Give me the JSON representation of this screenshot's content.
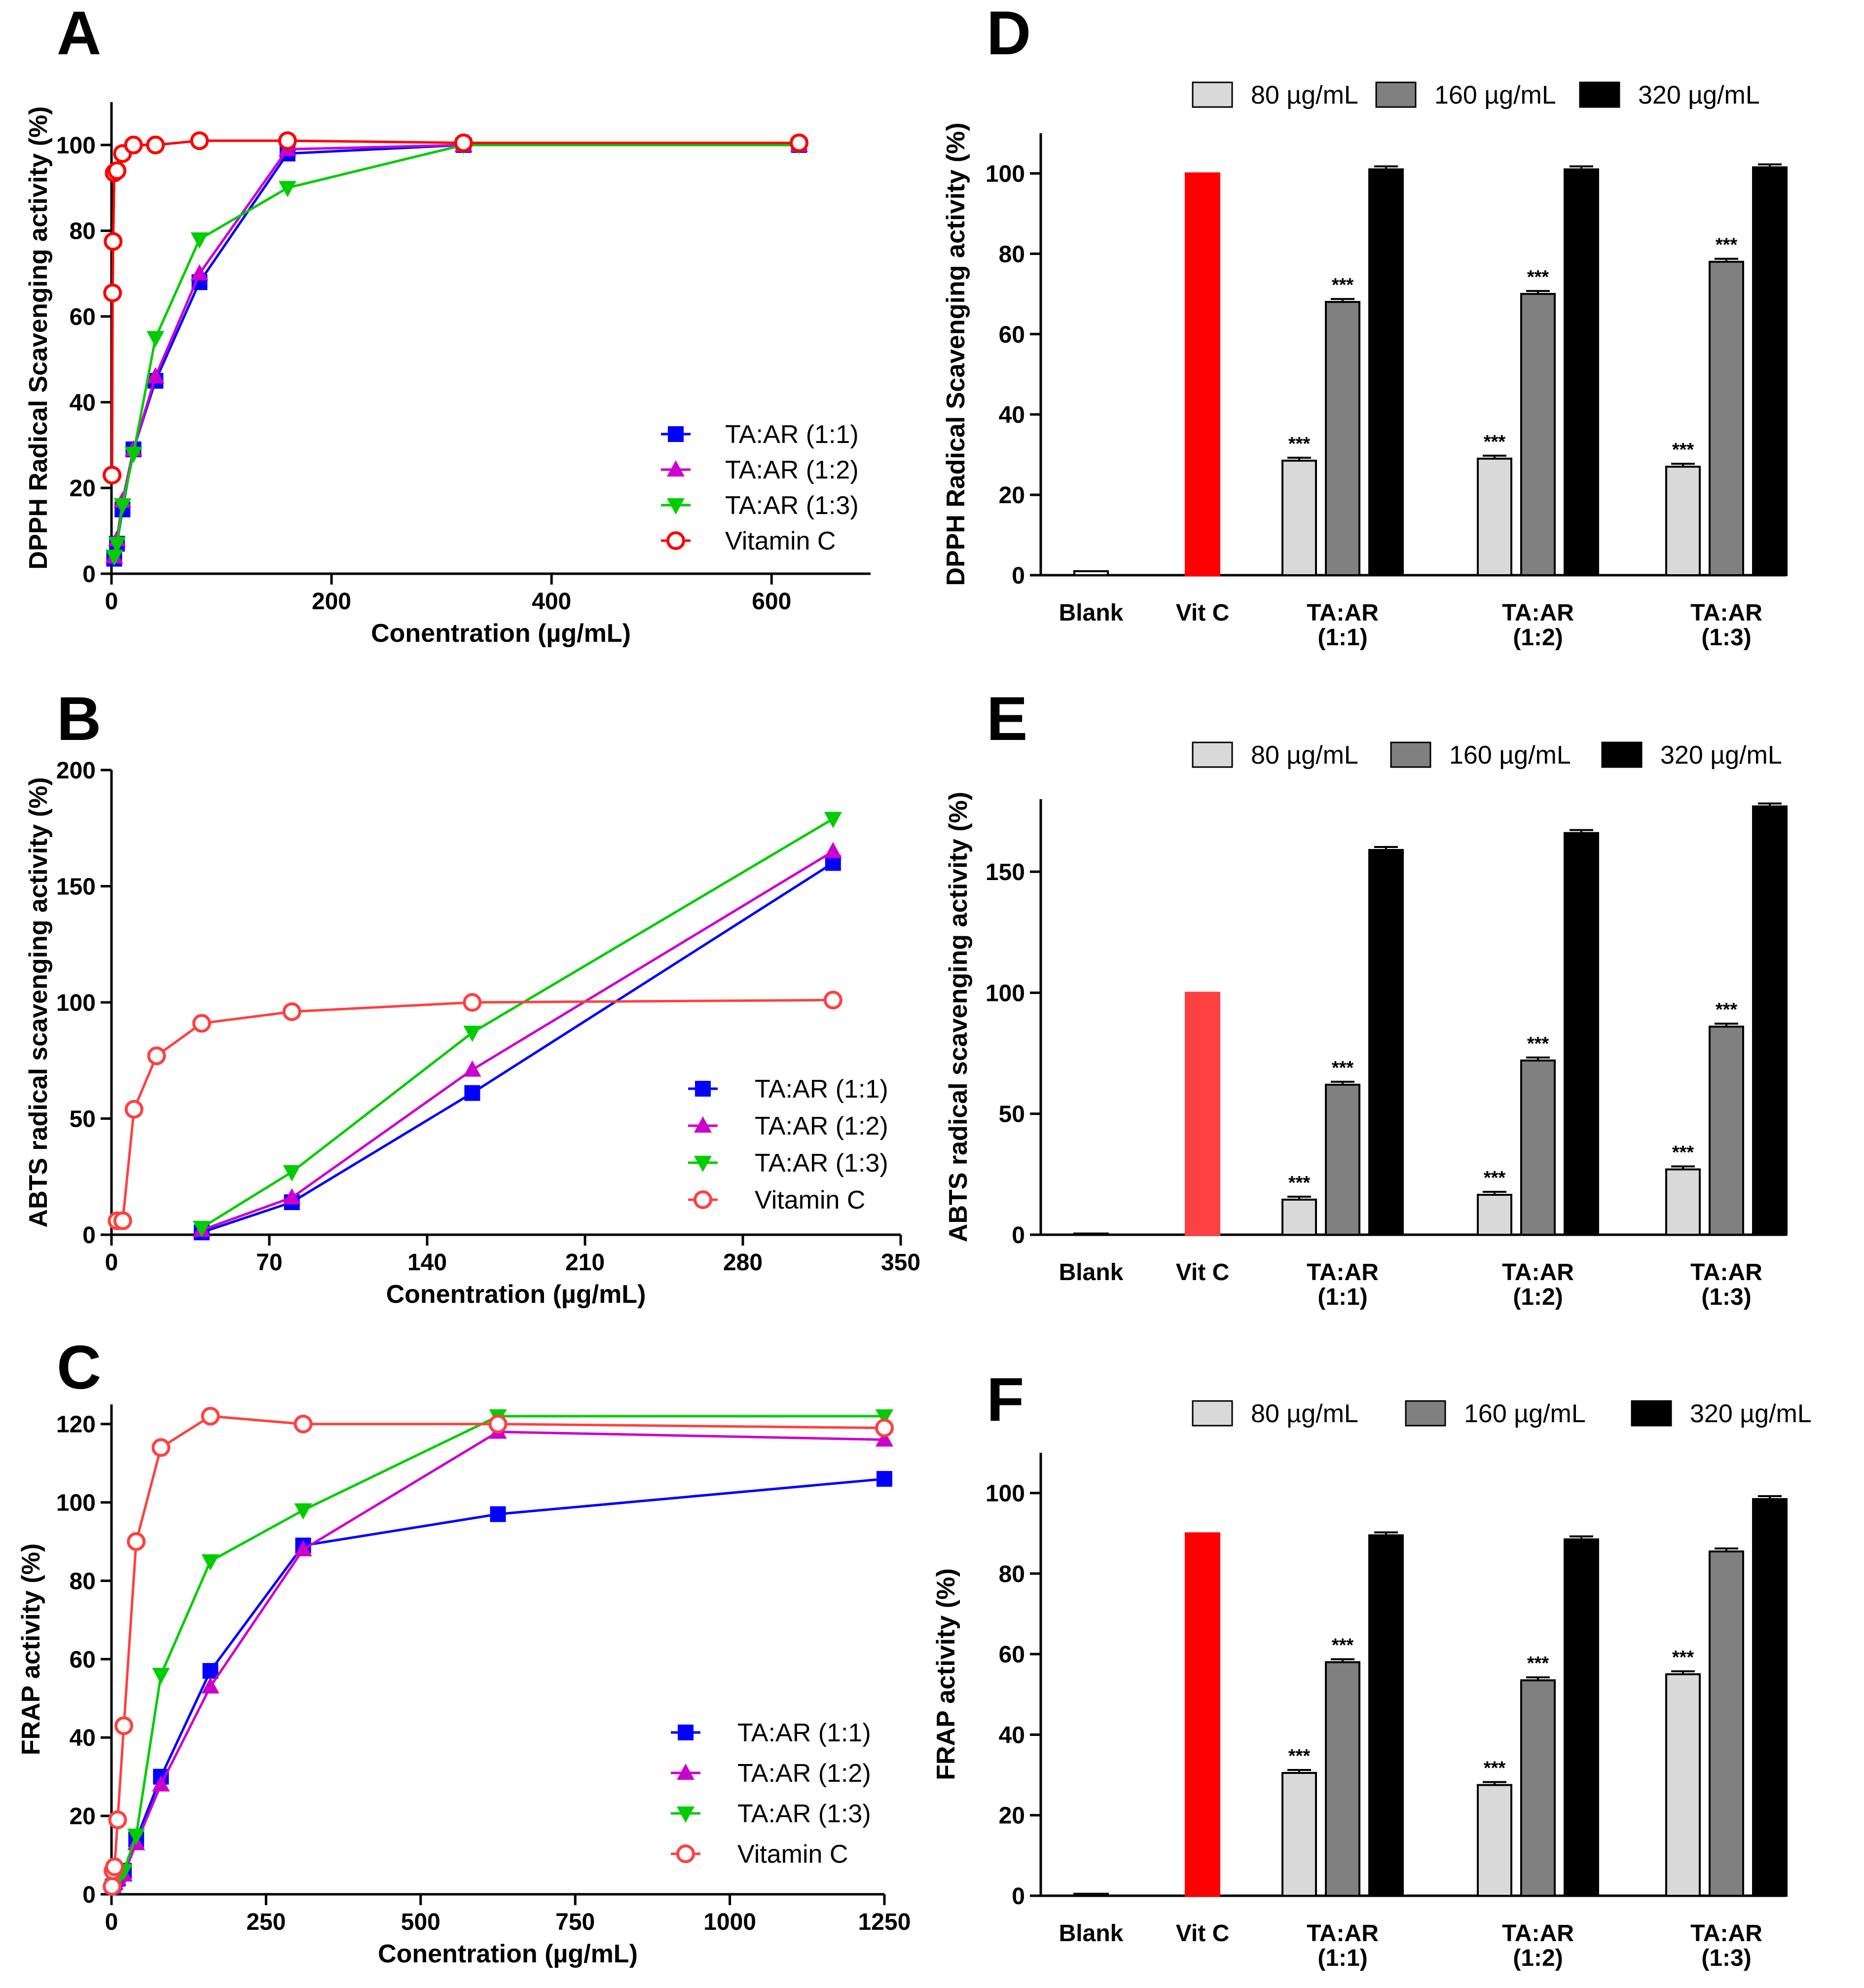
{
  "chart_data": [
    {
      "panel": "A",
      "type": "line",
      "xlabel": "Conentration (µg/mL)",
      "ylabel": "DPPH Radical Scavenging activity (%)",
      "xlim": [
        0,
        690
      ],
      "ylim": [
        0,
        110
      ],
      "xticks": [
        0,
        200,
        400,
        600
      ],
      "yticks": [
        0,
        20,
        40,
        60,
        80,
        100
      ],
      "legend_position": "bottom-right",
      "series": [
        {
          "name": "TA:AR (1:1)",
          "color": "#0000FF",
          "marker": "square",
          "x": [
            2.5,
            5,
            10,
            20,
            40,
            80,
            160,
            320,
            625
          ],
          "y": [
            3.5,
            7,
            15,
            29,
            45,
            68,
            98,
            100,
            100
          ]
        },
        {
          "name": "TA:AR (1:2)",
          "color": "#CC00CC",
          "marker": "triangle-up",
          "x": [
            2.5,
            5,
            10,
            20,
            40,
            80,
            160,
            320,
            625
          ],
          "y": [
            4,
            8,
            17,
            29,
            46,
            70,
            99,
            100,
            100
          ]
        },
        {
          "name": "TA:AR (1:3)",
          "color": "#00CC00",
          "marker": "triangle-down",
          "x": [
            2.5,
            5,
            10,
            20,
            40,
            80,
            160,
            320,
            625
          ],
          "y": [
            4,
            7,
            16,
            28,
            55,
            78,
            90,
            100,
            100
          ]
        },
        {
          "name": "Vitamin C",
          "color": "#FF0000",
          "marker": "circle-open",
          "x": [
            0.5,
            1,
            1.5,
            2.5,
            5,
            10,
            20,
            40,
            80,
            160,
            320,
            625
          ],
          "y": [
            23,
            65.5,
            77.5,
            93.5,
            94,
            98,
            100,
            100,
            101,
            101,
            100.5,
            100.5
          ]
        }
      ]
    },
    {
      "panel": "B",
      "type": "line",
      "xlabel": "Conentration (µg/mL)",
      "ylabel": "ABTS radical scavenging activity (%)",
      "xlim": [
        0,
        350
      ],
      "ylim": [
        0,
        200
      ],
      "xticks": [
        0,
        70,
        140,
        210,
        280,
        350
      ],
      "yticks": [
        0,
        50,
        100,
        150,
        200
      ],
      "legend_position": "bottom-right",
      "series": [
        {
          "name": "TA:AR (1:1)",
          "color": "#0000FF",
          "marker": "square",
          "x": [
            40,
            80,
            160,
            320
          ],
          "y": [
            1,
            14,
            61,
            160
          ]
        },
        {
          "name": "TA:AR (1:2)",
          "color": "#CC00CC",
          "marker": "triangle-up",
          "x": [
            40,
            80,
            160,
            320
          ],
          "y": [
            2,
            16,
            71,
            165
          ]
        },
        {
          "name": "TA:AR (1:3)",
          "color": "#00CC00",
          "marker": "triangle-down",
          "x": [
            40,
            80,
            160,
            320
          ],
          "y": [
            3,
            27,
            87,
            179
          ]
        },
        {
          "name": "Vitamin C",
          "color": "#FF4040",
          "marker": "circle-open",
          "x": [
            2.5,
            5,
            10,
            20,
            40,
            80,
            160,
            320
          ],
          "y": [
            6,
            6,
            54,
            77,
            91,
            96,
            100,
            101
          ]
        }
      ]
    },
    {
      "panel": "C",
      "type": "line",
      "xlabel": "Conentration (µg/mL)",
      "ylabel": "FRAP activity (%)",
      "xlim": [
        0,
        1250
      ],
      "ylim": [
        0,
        125
      ],
      "xticks": [
        0,
        250,
        500,
        750,
        1000,
        1250
      ],
      "yticks": [
        0,
        20,
        40,
        60,
        80,
        100,
        120
      ],
      "legend_position": "bottom-right",
      "series": [
        {
          "name": "TA:AR (1:1)",
          "color": "#0000FF",
          "marker": "square",
          "x": [
            2.5,
            5,
            10,
            20,
            40,
            80,
            160,
            310,
            625,
            1250
          ],
          "y": [
            2,
            3,
            4,
            6,
            14,
            30,
            57,
            89,
            97,
            106
          ]
        },
        {
          "name": "TA:AR (1:2)",
          "color": "#CC00CC",
          "marker": "triangle-up",
          "x": [
            2.5,
            5,
            10,
            20,
            40,
            80,
            160,
            310,
            625,
            1250
          ],
          "y": [
            2,
            3,
            4,
            5,
            13,
            28,
            53,
            88,
            118,
            116
          ]
        },
        {
          "name": "TA:AR (1:3)",
          "color": "#00CC00",
          "marker": "triangle-down",
          "x": [
            2.5,
            5,
            10,
            20,
            40,
            80,
            160,
            310,
            625,
            1250
          ],
          "y": [
            2,
            3,
            4,
            6,
            15,
            56,
            85,
            98,
            122,
            122
          ]
        },
        {
          "name": "Vitamin C",
          "color": "#FF4040",
          "marker": "circle-open",
          "x": [
            1,
            2.5,
            5,
            10,
            20,
            40,
            80,
            160,
            310,
            625,
            1250
          ],
          "y": [
            2,
            6,
            7,
            19,
            43,
            90,
            114,
            122,
            120,
            120,
            119
          ]
        }
      ]
    },
    {
      "panel": "D",
      "type": "bar",
      "ylabel": "DPPH Radical Scavenging activity (%)",
      "ylim": [
        0,
        110
      ],
      "yticks": [
        0,
        20,
        40,
        60,
        80,
        100
      ],
      "legend_position": "top",
      "legend": [
        {
          "label": "80 µg/mL",
          "color": "#D9D9D9"
        },
        {
          "label": "160 µg/mL",
          "color": "#808080"
        },
        {
          "label": "320 µg/mL",
          "color": "#000000"
        }
      ],
      "categories": [
        {
          "lines": [
            "Blank"
          ]
        },
        {
          "lines": [
            "Vit C"
          ]
        },
        {
          "lines": [
            "TA:AR",
            "(1:1)"
          ]
        },
        {
          "lines": [
            "TA:AR",
            "(1:2)"
          ]
        },
        {
          "lines": [
            "TA:AR",
            "(1:3)"
          ]
        }
      ],
      "control_bars": [
        {
          "category": 0,
          "value": 1,
          "color": "#FFFFFF"
        },
        {
          "category": 1,
          "value": 100,
          "color": "#FF0000"
        }
      ],
      "groups": [
        {
          "category": 2,
          "values": [
            28.5,
            68,
            101
          ],
          "stars": [
            "***",
            "***",
            ""
          ]
        },
        {
          "category": 3,
          "values": [
            29,
            70,
            101
          ],
          "stars": [
            "***",
            "***",
            ""
          ]
        },
        {
          "category": 4,
          "values": [
            27,
            78,
            101.5
          ],
          "stars": [
            "***",
            "***",
            ""
          ]
        }
      ]
    },
    {
      "panel": "E",
      "type": "bar",
      "ylabel": "ABTS radical scavenging activity (%)",
      "ylim": [
        0,
        180
      ],
      "yticks": [
        0,
        50,
        100,
        150
      ],
      "legend_position": "top",
      "legend": [
        {
          "label": "80 µg/mL",
          "color": "#D9D9D9"
        },
        {
          "label": "160 µg/mL",
          "color": "#808080"
        },
        {
          "label": "320 µg/mL",
          "color": "#000000"
        }
      ],
      "categories": [
        {
          "lines": [
            "Blank"
          ]
        },
        {
          "lines": [
            "Vit C"
          ]
        },
        {
          "lines": [
            "TA:AR",
            "(1:1)"
          ]
        },
        {
          "lines": [
            "TA:AR",
            "(1:2)"
          ]
        },
        {
          "lines": [
            "TA:AR",
            "(1:3)"
          ]
        }
      ],
      "control_bars": [
        {
          "category": 0,
          "value": 0.5,
          "color": "#FFFFFF"
        },
        {
          "category": 1,
          "value": 100,
          "color": "#FF4040"
        }
      ],
      "groups": [
        {
          "category": 2,
          "values": [
            14.5,
            62,
            159
          ],
          "stars": [
            "***",
            "***",
            ""
          ]
        },
        {
          "category": 3,
          "values": [
            16.5,
            72,
            166
          ],
          "stars": [
            "***",
            "***",
            ""
          ]
        },
        {
          "category": 4,
          "values": [
            27,
            86,
            177
          ],
          "stars": [
            "***",
            "***",
            ""
          ]
        }
      ]
    },
    {
      "panel": "F",
      "type": "bar",
      "ylabel": "FRAP activity (%)",
      "ylim": [
        0,
        110
      ],
      "yticks": [
        0,
        20,
        40,
        60,
        80,
        100
      ],
      "legend_position": "top",
      "legend": [
        {
          "label": "80 µg/mL",
          "color": "#D9D9D9"
        },
        {
          "label": "160 µg/mL",
          "color": "#808080"
        },
        {
          "label": "320 µg/mL",
          "color": "#000000"
        }
      ],
      "categories": [
        {
          "lines": [
            "Blank"
          ]
        },
        {
          "lines": [
            "Vit C"
          ]
        },
        {
          "lines": [
            "TA:AR",
            "(1:1)"
          ]
        },
        {
          "lines": [
            "TA:AR",
            "(1:2)"
          ]
        },
        {
          "lines": [
            "TA:AR",
            "(1:3)"
          ]
        }
      ],
      "control_bars": [
        {
          "category": 0,
          "value": 0.5,
          "color": "#FFFFFF"
        },
        {
          "category": 1,
          "value": 90,
          "color": "#FF0000"
        }
      ],
      "groups": [
        {
          "category": 2,
          "values": [
            30.5,
            58,
            89.5
          ],
          "stars": [
            "***",
            "***",
            ""
          ]
        },
        {
          "category": 3,
          "values": [
            27.5,
            53.5,
            88.5
          ],
          "stars": [
            "***",
            "***",
            ""
          ]
        },
        {
          "category": 4,
          "values": [
            55,
            85.5,
            98.5
          ],
          "stars": [
            "***",
            "",
            ""
          ]
        }
      ]
    }
  ]
}
